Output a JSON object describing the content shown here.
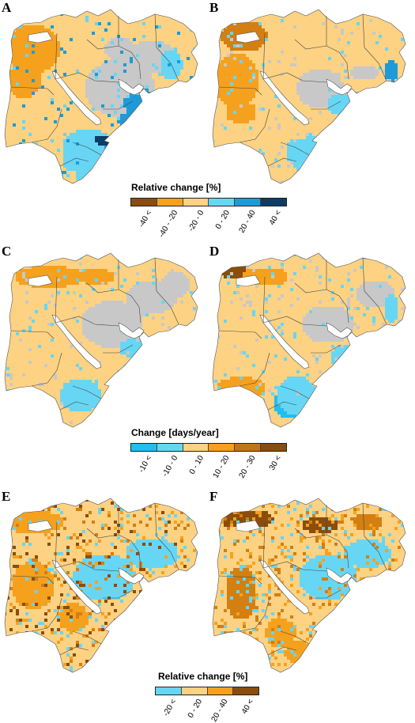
{
  "panels": [
    {
      "id": "A",
      "letter": "A"
    },
    {
      "id": "B",
      "letter": "B"
    },
    {
      "id": "C",
      "letter": "C"
    },
    {
      "id": "D",
      "letter": "D"
    },
    {
      "id": "E",
      "letter": "E"
    },
    {
      "id": "F",
      "letter": "F"
    }
  ],
  "colors": {
    "gray": "#c8c8c8",
    "peach": "#fdd283",
    "orange": "#f5a11e",
    "dorange": "#d37f12",
    "brown": "#8a4d0b",
    "lblue": "#67d6f4",
    "blue": "#1f9ad8",
    "navy": "#0b3d66",
    "sky": "#22bdf1"
  },
  "legends": [
    {
      "id": "legend-relative-change-1",
      "title": "Relative change [%]",
      "swatches": [
        "#8a4d0b",
        "#f5a11e",
        "#fdd283",
        "#67d6f4",
        "#1f9ad8",
        "#0b3d66"
      ],
      "labels": [
        "-40 <",
        "-40 - -20",
        "-20 - 0",
        "0 - 20",
        "20 - 40",
        "40 <"
      ]
    },
    {
      "id": "legend-change-days",
      "title": "Change [days/year]",
      "swatches": [
        "#22bdf1",
        "#67d6f4",
        "#fdd283",
        "#f5a11e",
        "#c2741a",
        "#8a4d0b"
      ],
      "labels": [
        "-10 <",
        "-10 - 0",
        "0 - 10",
        "10 - 20",
        "20 - 30",
        "30 <"
      ]
    },
    {
      "id": "legend-relative-change-2",
      "title": "Relative change [%]",
      "swatches": [
        "#67d6f4",
        "#fdd283",
        "#f5a11e",
        "#8a4d0b"
      ],
      "labels": [
        "-20 <",
        "0 - 20",
        "20 - 40",
        "40 <"
      ]
    }
  ]
}
